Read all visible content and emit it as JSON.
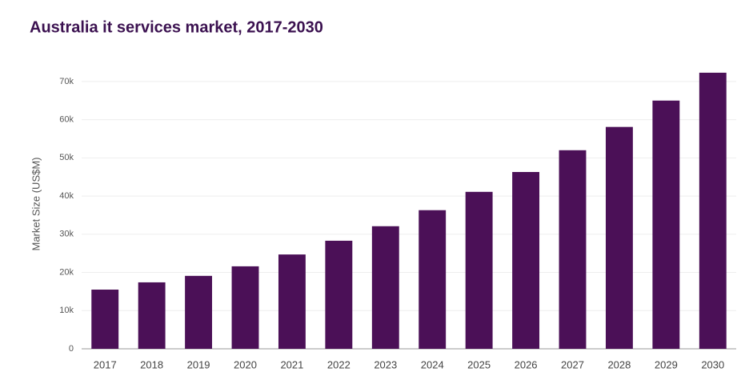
{
  "chart_data": {
    "type": "bar",
    "title": "Australia it services market, 2017-2030",
    "y_label": "Market Size (US$M)",
    "categories": [
      "2017",
      "2018",
      "2019",
      "2020",
      "2021",
      "2022",
      "2023",
      "2024",
      "2025",
      "2026",
      "2027",
      "2028",
      "2029",
      "2030"
    ],
    "values": [
      15500,
      17400,
      19100,
      21600,
      24700,
      28300,
      32100,
      36300,
      41100,
      46300,
      52000,
      58100,
      65000,
      72300
    ],
    "color": "#4b1057",
    "ylim": [
      0,
      75000
    ],
    "yticks": [
      0,
      {
        "value": 10000,
        "label": "10k"
      },
      {
        "value": 20000,
        "label": "20k"
      },
      {
        "value": 30000,
        "label": "30k"
      },
      {
        "value": 40000,
        "label": "40k"
      },
      {
        "value": 50000,
        "label": "50k"
      },
      {
        "value": 60000,
        "label": "60k"
      },
      {
        "value": 70000,
        "label": "70k"
      }
    ],
    "grid": true
  }
}
